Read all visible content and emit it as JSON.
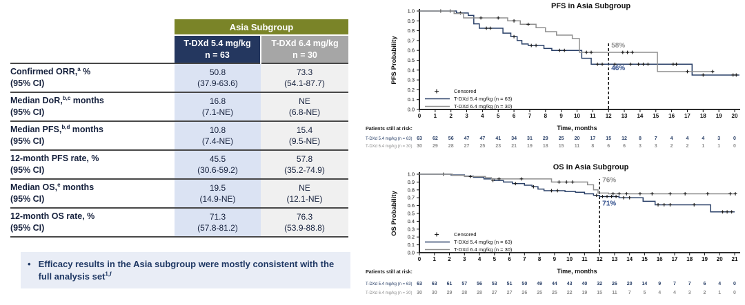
{
  "table": {
    "group_header": "Asia Subgroup",
    "columns": [
      {
        "title": "T-DXd 5.4 mg/kg",
        "n": "n = 63",
        "header_bg": "#24375f",
        "body_bg": "#dbe3f3"
      },
      {
        "title": "T-DXd 6.4 mg/kg",
        "n": "n = 30",
        "header_bg": "#a6a6a6",
        "body_bg": "#f0f0f0"
      }
    ],
    "rows": [
      {
        "label": "Confirmed ORR,",
        "sup": "a",
        "tail": " %",
        "line2": "(95% CI)",
        "indent": false,
        "values": [
          [
            "50.8",
            "(37.9-63.6)"
          ],
          [
            "73.3",
            "(54.1-87.7)"
          ]
        ]
      },
      {
        "label": "Median DoR,",
        "sup": "b,c",
        "tail": " months",
        "line2": "(95% CI)",
        "indent": false,
        "values": [
          [
            "16.8",
            "(7.1-NE)"
          ],
          [
            "NE",
            "(6.8-NE)"
          ]
        ]
      },
      {
        "label": "Median PFS,",
        "sup": "b,d",
        "tail": " months",
        "line2": "(95% CI)",
        "indent": false,
        "values": [
          [
            "10.8",
            "(7.4-NE)"
          ],
          [
            "15.4",
            "(9.5-NE)"
          ]
        ]
      },
      {
        "label": "12-month PFS rate, %",
        "sup": "",
        "tail": "",
        "line2": "(95% CI)",
        "indent": true,
        "values": [
          [
            "45.5",
            "(30.6-59.2)"
          ],
          [
            "57.8",
            "(35.2-74.9)"
          ]
        ]
      },
      {
        "label": "Median OS,",
        "sup": "e",
        "tail": " months",
        "line2": "(95% CI)",
        "indent": false,
        "values": [
          [
            "19.5",
            "(14.9-NE)"
          ],
          [
            "NE",
            "(12.1-NE)"
          ]
        ]
      },
      {
        "label": "12-month OS rate, %",
        "sup": "",
        "tail": "",
        "line2": "(95% CI)",
        "indent": true,
        "values": [
          [
            "71.3",
            "(57.8-81.2)"
          ],
          [
            "76.3",
            "(53.9-88.8)"
          ]
        ]
      }
    ],
    "header_bg": "#7a8428"
  },
  "bullet": {
    "text": "Efficacy results in the Asia subgroup were mostly consistent with the full analysis set",
    "sup": "1,f",
    "marker": "•"
  },
  "chart_data": [
    {
      "type": "line",
      "title": "PFS in Asia Subgroup",
      "ylabel": "PFS Probability",
      "xlabel": "Time, months",
      "xlim": [
        0,
        20
      ],
      "ylim": [
        0,
        1
      ],
      "ytick_step": 0.1,
      "grid": false,
      "censored_label": "Censored",
      "series": [
        {
          "name": "T-DXd 5.4 mg/kg (n = 63)",
          "color": "#2a4068",
          "end": 20.3,
          "steps": [
            [
              0,
              1.0
            ],
            [
              2.35,
              0.98
            ],
            [
              3.1,
              0.955
            ],
            [
              3.45,
              0.87
            ],
            [
              3.8,
              0.825
            ],
            [
              5.3,
              0.775
            ],
            [
              5.8,
              0.74
            ],
            [
              6.2,
              0.7
            ],
            [
              6.5,
              0.665
            ],
            [
              6.9,
              0.65
            ],
            [
              7.9,
              0.62
            ],
            [
              8.4,
              0.6
            ],
            [
              10.3,
              0.52
            ],
            [
              10.9,
              0.46
            ],
            [
              17.3,
              0.35
            ]
          ],
          "censors": [
            [
              1.35,
              1.0
            ],
            [
              1.95,
              1.0
            ],
            [
              2.6,
              0.98
            ],
            [
              4.25,
              0.825
            ],
            [
              4.5,
              0.825
            ],
            [
              6.0,
              0.74
            ],
            [
              7.1,
              0.65
            ],
            [
              7.4,
              0.65
            ],
            [
              8.9,
              0.6
            ],
            [
              9.2,
              0.6
            ],
            [
              11.3,
              0.46
            ],
            [
              11.6,
              0.46
            ],
            [
              12.4,
              0.46
            ],
            [
              13.4,
              0.46
            ],
            [
              13.9,
              0.46
            ],
            [
              14.2,
              0.46
            ],
            [
              14.5,
              0.46
            ],
            [
              16.1,
              0.46
            ],
            [
              16.3,
              0.46
            ],
            [
              18.0,
              0.35
            ],
            [
              19.9,
              0.35
            ],
            [
              20.1,
              0.35
            ]
          ]
        },
        {
          "name": "T-DXd 6.4 mg/kg (n = 30)",
          "color": "#8f8f8f",
          "end": 18.7,
          "steps": [
            [
              0,
              1.0
            ],
            [
              2.2,
              0.975
            ],
            [
              2.8,
              0.93
            ],
            [
              5.6,
              0.9
            ],
            [
              6.4,
              0.865
            ],
            [
              7.4,
              0.83
            ],
            [
              8.0,
              0.79
            ],
            [
              8.7,
              0.755
            ],
            [
              9.7,
              0.72
            ],
            [
              10.15,
              0.58
            ],
            [
              15.1,
              0.385
            ]
          ],
          "censors": [
            [
              3.9,
              0.93
            ],
            [
              5.0,
              0.93
            ],
            [
              6.0,
              0.9
            ],
            [
              6.9,
              0.865
            ],
            [
              10.6,
              0.58
            ],
            [
              10.9,
              0.58
            ],
            [
              12.9,
              0.58
            ],
            [
              13.2,
              0.58
            ],
            [
              13.5,
              0.58
            ],
            [
              17.0,
              0.385
            ],
            [
              18.6,
              0.385
            ]
          ]
        }
      ],
      "annotation": {
        "x": 12,
        "top": 0.68,
        "labels": [
          {
            "text": "58%",
            "color": "#8f8f8f",
            "y": 0.63
          },
          {
            "text": "46%",
            "color": "#2c4a8a",
            "y": 0.4
          }
        ]
      },
      "at_risk": {
        "header": "Patients still at risk:",
        "rows": [
          {
            "label": "T-DXd 5.4 mg/kg (n = 63)",
            "color": "#2a4068",
            "values": [
              63,
              62,
              56,
              47,
              47,
              41,
              34,
              31,
              29,
              25,
              20,
              17,
              15,
              12,
              8,
              7,
              4,
              4,
              4,
              3,
              0
            ]
          },
          {
            "label": "T-DXd 6.4 mg/kg (n = 30)",
            "color": "#8f8f8f",
            "values": [
              30,
              29,
              28,
              27,
              25,
              23,
              21,
              19,
              18,
              15,
              11,
              8,
              6,
              6,
              3,
              3,
              2,
              2,
              1,
              1,
              0
            ]
          }
        ]
      }
    },
    {
      "type": "line",
      "title": "OS in Asia Subgroup",
      "ylabel": "OS Probability",
      "xlabel": "Time, months",
      "xlim": [
        0,
        21
      ],
      "ylim": [
        0,
        1
      ],
      "ytick_step": 0.1,
      "grid": false,
      "censored_label": "Censored",
      "series": [
        {
          "name": "T-DXd 5.4 mg/kg (n = 63)",
          "color": "#2a4068",
          "end": 21.0,
          "steps": [
            [
              0,
              1.0
            ],
            [
              2.1,
              0.99
            ],
            [
              3.0,
              0.975
            ],
            [
              3.6,
              0.96
            ],
            [
              4.3,
              0.94
            ],
            [
              5.0,
              0.92
            ],
            [
              5.6,
              0.9
            ],
            [
              6.2,
              0.88
            ],
            [
              7.0,
              0.86
            ],
            [
              7.5,
              0.84
            ],
            [
              7.9,
              0.81
            ],
            [
              8.3,
              0.79
            ],
            [
              9.7,
              0.78
            ],
            [
              10.4,
              0.77
            ],
            [
              11.0,
              0.75
            ],
            [
              11.6,
              0.73
            ],
            [
              12.0,
              0.715
            ],
            [
              13.3,
              0.7
            ],
            [
              14.9,
              0.655
            ],
            [
              15.7,
              0.61
            ],
            [
              19.4,
              0.52
            ]
          ],
          "censors": [
            [
              1.6,
              1.0
            ],
            [
              4.9,
              0.92
            ],
            [
              6.4,
              0.88
            ],
            [
              7.6,
              0.84
            ],
            [
              8.8,
              0.79
            ],
            [
              9.2,
              0.79
            ],
            [
              11.8,
              0.73
            ],
            [
              12.2,
              0.715
            ],
            [
              12.5,
              0.715
            ],
            [
              12.8,
              0.715
            ],
            [
              13.1,
              0.715
            ],
            [
              13.6,
              0.7
            ],
            [
              14.0,
              0.7
            ],
            [
              15.9,
              0.61
            ],
            [
              16.3,
              0.61
            ],
            [
              16.7,
              0.61
            ],
            [
              18.3,
              0.61
            ],
            [
              20.2,
              0.52
            ],
            [
              20.5,
              0.52
            ],
            [
              20.8,
              0.52
            ]
          ]
        },
        {
          "name": "T-DXd 6.4 mg/kg (n = 30)",
          "color": "#8f8f8f",
          "end": 21.1,
          "steps": [
            [
              0,
              1.0
            ],
            [
              2.2,
              0.985
            ],
            [
              3.0,
              0.97
            ],
            [
              4.4,
              0.955
            ],
            [
              4.8,
              0.94
            ],
            [
              8.8,
              0.9
            ],
            [
              11.2,
              0.865
            ],
            [
              11.6,
              0.8
            ],
            [
              11.9,
              0.76
            ],
            [
              12.6,
              0.75
            ]
          ],
          "censors": [
            [
              3.4,
              0.97
            ],
            [
              5.3,
              0.94
            ],
            [
              6.8,
              0.94
            ],
            [
              9.3,
              0.9
            ],
            [
              9.8,
              0.9
            ],
            [
              10.2,
              0.9
            ],
            [
              12.9,
              0.75
            ],
            [
              13.3,
              0.75
            ],
            [
              13.8,
              0.75
            ],
            [
              14.7,
              0.75
            ],
            [
              15.5,
              0.75
            ],
            [
              16.7,
              0.75
            ],
            [
              17.7,
              0.75
            ],
            [
              19.2,
              0.75
            ],
            [
              20.7,
              0.75
            ],
            [
              21.05,
              0.75
            ]
          ]
        }
      ],
      "annotation": {
        "x": 12,
        "top": 0.94,
        "labels": [
          {
            "text": "76%",
            "color": "#8f8f8f",
            "y": 0.9
          },
          {
            "text": "71%",
            "color": "#2c4a8a",
            "y": 0.6
          }
        ]
      },
      "at_risk": {
        "header": "Patients still at risk:",
        "rows": [
          {
            "label": "T-DXd 5.4 mg/kg (n = 63)",
            "color": "#2a4068",
            "values": [
              63,
              63,
              61,
              57,
              56,
              53,
              51,
              50,
              49,
              44,
              43,
              40,
              32,
              26,
              20,
              14,
              9,
              7,
              7,
              6,
              4,
              0
            ]
          },
          {
            "label": "T-DXd 6.4 mg/kg (n = 30)",
            "color": "#8f8f8f",
            "values": [
              30,
              30,
              29,
              28,
              28,
              27,
              27,
              26,
              25,
              25,
              22,
              19,
              15,
              11,
              7,
              5,
              4,
              4,
              3,
              2,
              1,
              0
            ]
          }
        ]
      }
    }
  ]
}
